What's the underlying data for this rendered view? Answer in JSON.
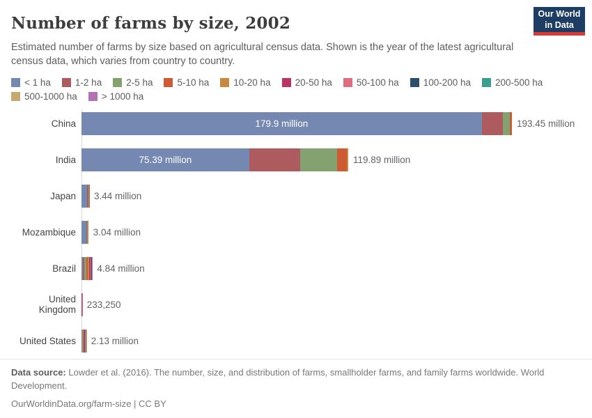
{
  "header": {
    "title": "Number of farms by size, 2002",
    "subtitle": "Estimated number of farms by size based on agricultural census data. Shown is the year of the latest agricultural census data, which varies from country to country.",
    "logo": {
      "line1": "Our World",
      "line2": "in Data",
      "bg_color": "#1d3d63",
      "stripe_color": "#d73a34"
    }
  },
  "legend": {
    "items": [
      {
        "label": "< 1 ha",
        "color": "#7488b1"
      },
      {
        "label": "1-2 ha",
        "color": "#ad5b5e"
      },
      {
        "label": "2-5 ha",
        "color": "#83a26f"
      },
      {
        "label": "5-10 ha",
        "color": "#cd5b34"
      },
      {
        "label": "10-20 ha",
        "color": "#c9883f"
      },
      {
        "label": "20-50 ha",
        "color": "#ba3365"
      },
      {
        "label": "50-100 ha",
        "color": "#dd6e7d"
      },
      {
        "label": "100-200 ha",
        "color": "#2d4f6e"
      },
      {
        "label": "200-500 ha",
        "color": "#3b9e8e"
      },
      {
        "label": "500-1000 ha",
        "color": "#c6a871"
      },
      {
        "label": "> 1000 ha",
        "color": "#b173b3"
      }
    ]
  },
  "chart_data": {
    "type": "bar",
    "orientation": "horizontal",
    "stacked": true,
    "title": "Number of farms by size, 2002",
    "unit": "farms (millions)",
    "grid": false,
    "legend_position": "top",
    "x_range_million": [
      0,
      193.45
    ],
    "categories": [
      "China",
      "India",
      "Japan",
      "Mozambique",
      "Brazil",
      "United Kingdom",
      "United States"
    ],
    "size_classes": [
      "< 1 ha",
      "1-2 ha",
      "2-5 ha",
      "5-10 ha",
      "10-20 ha",
      "20-50 ha",
      "50-100 ha",
      "100-200 ha",
      "200-500 ha",
      "500-1000 ha",
      "> 1000 ha"
    ],
    "rows": [
      {
        "country": "China",
        "total_million": 193.45,
        "total_label": "193.45 million",
        "segments": [
          {
            "class": "< 1 ha",
            "million": 179.9,
            "label": "179.9 million"
          },
          {
            "class": "1-2 ha",
            "million": 9.4
          },
          {
            "class": "2-5 ha",
            "million": 3.2
          },
          {
            "class": "5-10 ha",
            "million": 0.95
          }
        ]
      },
      {
        "country": "India",
        "total_million": 119.89,
        "total_label": "119.89 million",
        "segments": [
          {
            "class": "< 1 ha",
            "million": 75.39,
            "label": "75.39 million"
          },
          {
            "class": "1-2 ha",
            "million": 22.8
          },
          {
            "class": "2-5 ha",
            "million": 16.6
          },
          {
            "class": "5-10 ha",
            "million": 4.6
          },
          {
            "class": "10-20 ha",
            "million": 0.5
          }
        ]
      },
      {
        "country": "Japan",
        "total_million": 3.44,
        "total_label": "3.44 million",
        "segments": [
          {
            "class": "< 1 ha",
            "million": 2.5
          },
          {
            "class": "1-2 ha",
            "million": 0.65
          },
          {
            "class": "2-5 ha",
            "million": 0.22
          },
          {
            "class": "5-10 ha",
            "million": 0.07
          }
        ]
      },
      {
        "country": "Mozambique",
        "total_million": 3.04,
        "total_label": "3.04 million",
        "segments": [
          {
            "class": "< 1 ha",
            "million": 2.1
          },
          {
            "class": "1-2 ha",
            "million": 0.5
          },
          {
            "class": "2-5 ha",
            "million": 0.3
          },
          {
            "class": "10-20 ha",
            "million": 0.14
          }
        ]
      },
      {
        "country": "Brazil",
        "total_million": 4.84,
        "total_label": "4.84 million",
        "segments": [
          {
            "class": "< 1 ha",
            "million": 0.75
          },
          {
            "class": "1-2 ha",
            "million": 0.62
          },
          {
            "class": "2-5 ha",
            "million": 0.77
          },
          {
            "class": "5-10 ha",
            "million": 0.6
          },
          {
            "class": "10-20 ha",
            "million": 0.7
          },
          {
            "class": "20-50 ha",
            "million": 0.6
          },
          {
            "class": "50-100 ha",
            "million": 0.31
          },
          {
            "class": "100-200 ha",
            "million": 0.22
          },
          {
            "class": "200-500 ha",
            "million": 0.17
          },
          {
            "class": "500-1000 ha",
            "million": 0.06
          },
          {
            "class": "> 1000 ha",
            "million": 0.04
          }
        ]
      },
      {
        "country": "United Kingdom",
        "total_million": 0.23325,
        "total_label": "233,250",
        "segments": [
          {
            "class": "< 1 ha",
            "million": 0.02
          },
          {
            "class": "1-2 ha",
            "million": 0.02
          },
          {
            "class": "2-5 ha",
            "million": 0.03
          },
          {
            "class": "5-10 ha",
            "million": 0.03
          },
          {
            "class": "10-20 ha",
            "million": 0.035
          },
          {
            "class": "20-50 ha",
            "million": 0.045
          },
          {
            "class": "50-100 ha",
            "million": 0.025
          },
          {
            "class": "100-200 ha",
            "million": 0.014
          },
          {
            "class": "200-500 ha",
            "million": 0.01
          },
          {
            "class": "500-1000 ha",
            "million": 0.002
          },
          {
            "class": "> 1000 ha",
            "million": 0.002
          }
        ]
      },
      {
        "country": "United States",
        "total_million": 2.13,
        "total_label": "2.13 million",
        "segments": [
          {
            "class": "< 1 ha",
            "million": 0.2
          },
          {
            "class": "1-2 ha",
            "million": 0.1
          },
          {
            "class": "2-5 ha",
            "million": 0.2
          },
          {
            "class": "5-10 ha",
            "million": 0.25
          },
          {
            "class": "10-20 ha",
            "million": 0.3
          },
          {
            "class": "20-50 ha",
            "million": 0.4
          },
          {
            "class": "50-100 ha",
            "million": 0.35
          },
          {
            "class": "100-200 ha",
            "million": 0.18
          },
          {
            "class": "200-500 ha",
            "million": 0.1
          },
          {
            "class": "500-1000 ha",
            "million": 0.03
          },
          {
            "class": "> 1000 ha",
            "million": 0.02
          }
        ]
      }
    ]
  },
  "footer": {
    "source_label": "Data source:",
    "source_text": "Lowder et al. (2016). The number, size, and distribution of farms, smallholder farms, and family farms worldwide. World Development.",
    "url_line": "OurWorldinData.org/farm-size | CC BY"
  }
}
